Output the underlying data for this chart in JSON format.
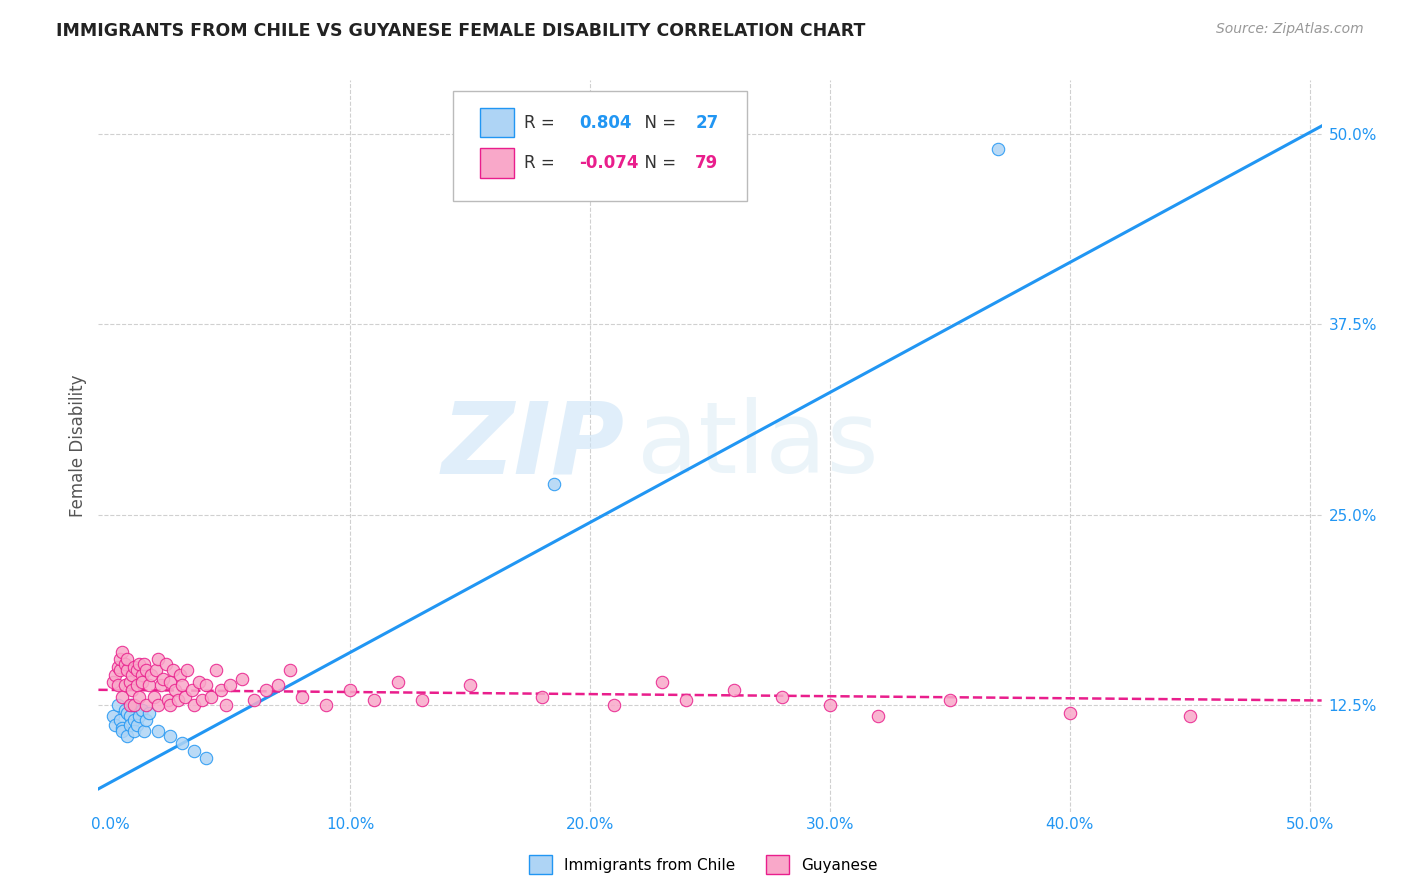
{
  "title": "IMMIGRANTS FROM CHILE VS GUYANESE FEMALE DISABILITY CORRELATION CHART",
  "source": "Source: ZipAtlas.com",
  "xlabel_ticks": [
    "0.0%",
    "10.0%",
    "20.0%",
    "30.0%",
    "40.0%",
    "50.0%"
  ],
  "xlabel_vals": [
    0.0,
    0.1,
    0.2,
    0.3,
    0.4,
    0.5
  ],
  "ylabel": "Female Disability",
  "ylabel_ticks": [
    "12.5%",
    "25.0%",
    "37.5%",
    "50.0%"
  ],
  "ylabel_vals": [
    0.125,
    0.25,
    0.375,
    0.5
  ],
  "xlim": [
    -0.005,
    0.505
  ],
  "ylim": [
    0.055,
    0.535
  ],
  "watermark_zip": "ZIP",
  "watermark_atlas": "atlas",
  "legend_chile_label": "Immigrants from Chile",
  "legend_guyanese_label": "Guyanese",
  "chile_R": 0.804,
  "chile_N": 27,
  "guyanese_R": -0.074,
  "guyanese_N": 79,
  "chile_color": "#aed4f5",
  "chile_line_color": "#2196f3",
  "guyanese_color": "#f9a8c9",
  "guyanese_line_color": "#e91e8c",
  "background_color": "#ffffff",
  "grid_color": "#d0d0d0",
  "chile_scatter_x": [
    0.001,
    0.002,
    0.003,
    0.004,
    0.005,
    0.005,
    0.006,
    0.007,
    0.007,
    0.008,
    0.008,
    0.009,
    0.01,
    0.01,
    0.011,
    0.012,
    0.013,
    0.014,
    0.015,
    0.016,
    0.02,
    0.025,
    0.03,
    0.035,
    0.04,
    0.185,
    0.37
  ],
  "chile_scatter_y": [
    0.118,
    0.112,
    0.125,
    0.115,
    0.11,
    0.108,
    0.122,
    0.12,
    0.105,
    0.118,
    0.112,
    0.125,
    0.115,
    0.108,
    0.112,
    0.118,
    0.122,
    0.108,
    0.115,
    0.12,
    0.108,
    0.105,
    0.1,
    0.095,
    0.09,
    0.27,
    0.49
  ],
  "chile_line_x": [
    -0.005,
    0.505
  ],
  "chile_line_y": [
    0.07,
    0.505
  ],
  "guyanese_scatter_x": [
    0.001,
    0.002,
    0.003,
    0.003,
    0.004,
    0.004,
    0.005,
    0.005,
    0.006,
    0.006,
    0.007,
    0.007,
    0.008,
    0.008,
    0.009,
    0.009,
    0.01,
    0.01,
    0.011,
    0.011,
    0.012,
    0.012,
    0.013,
    0.013,
    0.014,
    0.015,
    0.015,
    0.016,
    0.017,
    0.018,
    0.019,
    0.02,
    0.02,
    0.021,
    0.022,
    0.023,
    0.024,
    0.025,
    0.025,
    0.026,
    0.027,
    0.028,
    0.029,
    0.03,
    0.031,
    0.032,
    0.034,
    0.035,
    0.037,
    0.038,
    0.04,
    0.042,
    0.044,
    0.046,
    0.048,
    0.05,
    0.055,
    0.06,
    0.065,
    0.07,
    0.075,
    0.08,
    0.09,
    0.1,
    0.11,
    0.12,
    0.13,
    0.15,
    0.18,
    0.21,
    0.23,
    0.24,
    0.26,
    0.28,
    0.3,
    0.32,
    0.35,
    0.4,
    0.45
  ],
  "guyanese_scatter_y": [
    0.14,
    0.145,
    0.138,
    0.15,
    0.148,
    0.155,
    0.16,
    0.13,
    0.152,
    0.138,
    0.148,
    0.155,
    0.14,
    0.125,
    0.145,
    0.135,
    0.15,
    0.125,
    0.148,
    0.138,
    0.152,
    0.13,
    0.145,
    0.14,
    0.152,
    0.148,
    0.125,
    0.138,
    0.145,
    0.13,
    0.148,
    0.155,
    0.125,
    0.138,
    0.142,
    0.152,
    0.128,
    0.14,
    0.125,
    0.148,
    0.135,
    0.128,
    0.145,
    0.138,
    0.13,
    0.148,
    0.135,
    0.125,
    0.14,
    0.128,
    0.138,
    0.13,
    0.148,
    0.135,
    0.125,
    0.138,
    0.142,
    0.128,
    0.135,
    0.138,
    0.148,
    0.13,
    0.125,
    0.135,
    0.128,
    0.14,
    0.128,
    0.138,
    0.13,
    0.125,
    0.14,
    0.128,
    0.135,
    0.13,
    0.125,
    0.118,
    0.128,
    0.12,
    0.118
  ],
  "guyanese_line_x": [
    -0.005,
    0.505
  ],
  "guyanese_line_y": [
    0.135,
    0.128
  ]
}
